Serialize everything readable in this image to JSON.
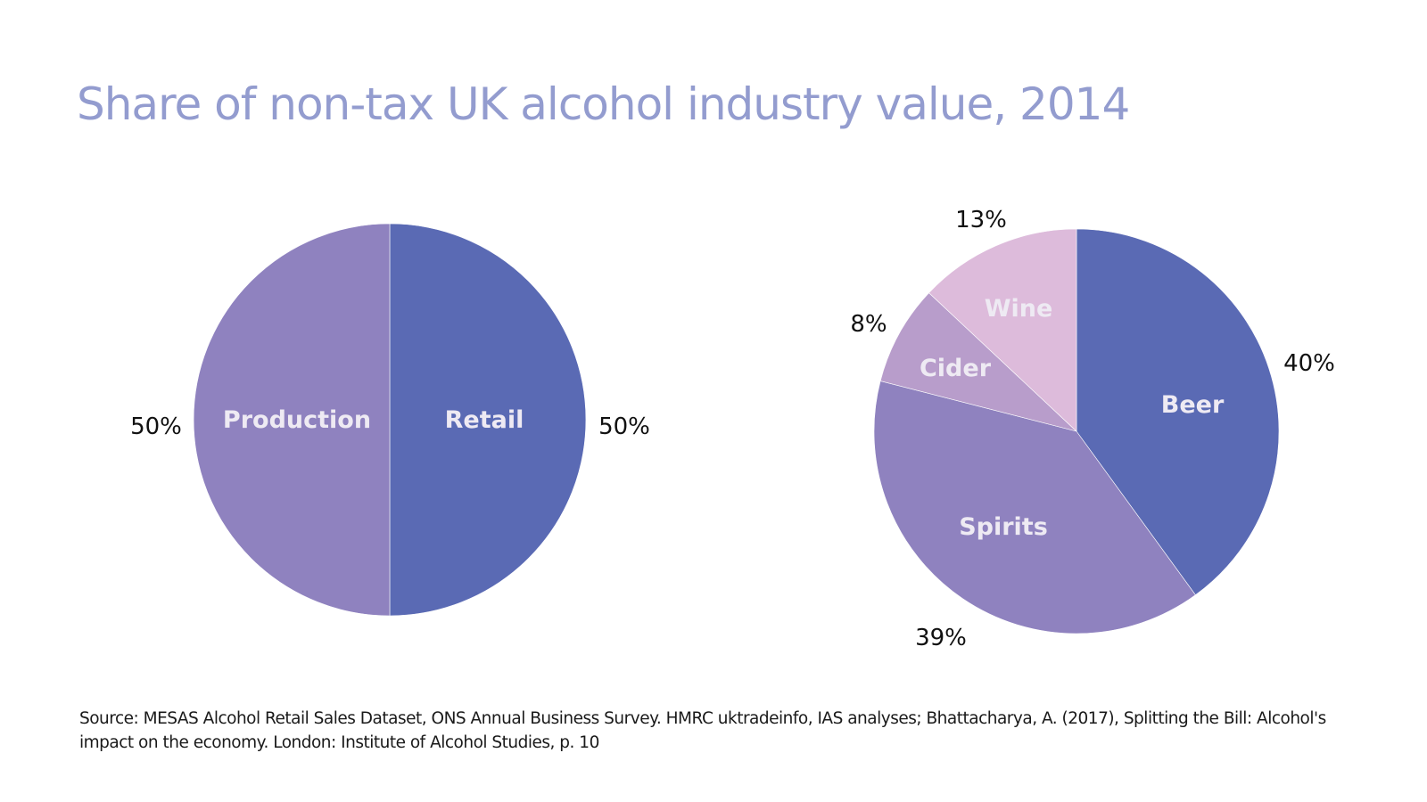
{
  "title": "Share of non-tax UK alcohol industry value, 2014",
  "source": "Source: MESAS Alcohol Retail Sales Dataset, ONS Annual Business Survey. HMRC uktradeinfo, IAS analyses; Bhattacharya, A. (2017), Splitting the Bill: Alcohol's impact on the economy. London: Institute of Alcohol Studies, p. 10",
  "chart_data": [
    {
      "type": "pie",
      "title": "Share of non-tax UK alcohol industry value, 2014",
      "categories": [
        "Retail",
        "Production"
      ],
      "values": [
        50,
        50
      ],
      "value_labels": [
        "50%",
        "50%"
      ],
      "colors": [
        "#5a6ab4",
        "#8f82bf"
      ],
      "start": "12 o'clock, clockwise"
    },
    {
      "type": "pie",
      "title": "Share of non-tax UK alcohol industry value, 2014",
      "categories": [
        "Beer",
        "Spirits",
        "Cider",
        "Wine"
      ],
      "values": [
        40,
        39,
        8,
        13
      ],
      "value_labels": [
        "40%",
        "39%",
        "8%",
        "13%"
      ],
      "colors": [
        "#5a6ab4",
        "#8f82bf",
        "#b89dcb",
        "#ddbbdb"
      ],
      "start": "12 o'clock, clockwise"
    }
  ],
  "colors": {
    "title": "#939ccf",
    "inner_label": "#eeeaf3",
    "outer_label": "#111111"
  }
}
